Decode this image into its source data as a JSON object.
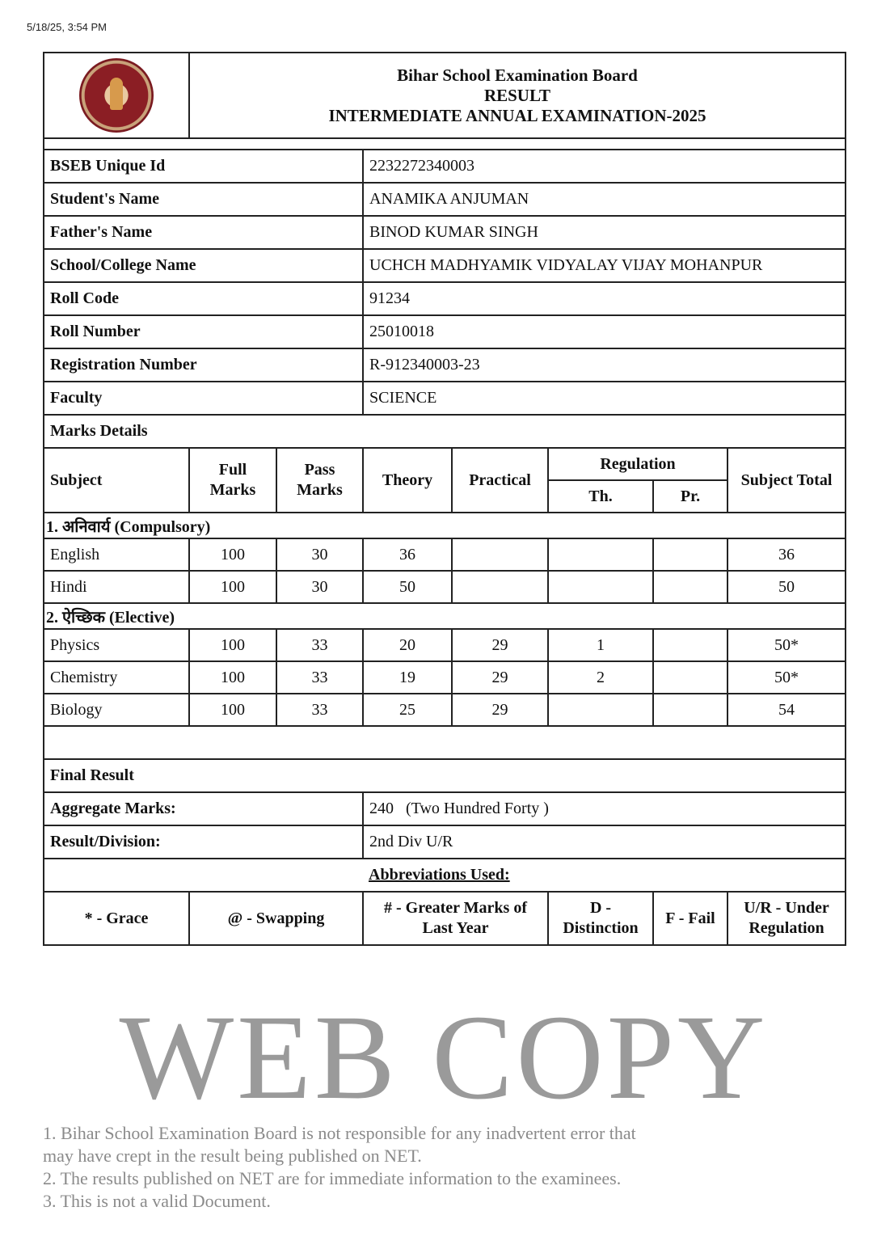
{
  "timestamp": "5/18/25, 3:54 PM",
  "header": {
    "board": "Bihar School Examination Board",
    "result": "RESULT",
    "exam": "INTERMEDIATE ANNUAL EXAMINATION-2025",
    "logo": "bseb-seal-icon"
  },
  "info": [
    {
      "label": "BSEB Unique Id",
      "value": "2232272340003"
    },
    {
      "label": "Student's Name",
      "value": "ANAMIKA ANJUMAN"
    },
    {
      "label": "Father's Name",
      "value": "BINOD KUMAR SINGH"
    },
    {
      "label": "School/College Name",
      "value": "UCHCH MADHYAMIK VIDYALAY VIJAY MOHANPUR"
    },
    {
      "label": "Roll Code",
      "value": "91234"
    },
    {
      "label": "Roll Number",
      "value": "25010018"
    },
    {
      "label": "Registration Number",
      "value": "R-912340003-23"
    },
    {
      "label": "Faculty",
      "value": "SCIENCE"
    }
  ],
  "marks_title": "Marks Details",
  "cols": {
    "subject": "Subject",
    "full": "Full Marks",
    "pass": "Pass Marks",
    "theory": "Theory",
    "practical": "Practical",
    "regulation": "Regulation",
    "th": "Th.",
    "pr": "Pr.",
    "total": "Subject Total"
  },
  "sections": [
    {
      "title": "1. अनिवार्य (Compulsory)",
      "rows": [
        {
          "subject": "English",
          "full": "100",
          "pass": "30",
          "theory": "36",
          "practical": "",
          "th": "",
          "pr": "",
          "total": "36"
        },
        {
          "subject": "Hindi",
          "full": "100",
          "pass": "30",
          "theory": "50",
          "practical": "",
          "th": "",
          "pr": "",
          "total": "50"
        }
      ]
    },
    {
      "title": "2. ऐच्छिक (Elective)",
      "rows": [
        {
          "subject": "Physics",
          "full": "100",
          "pass": "33",
          "theory": "20",
          "practical": "29",
          "th": "1",
          "pr": "",
          "total": "50*"
        },
        {
          "subject": "Chemistry",
          "full": "100",
          "pass": "33",
          "theory": "19",
          "practical": "29",
          "th": "2",
          "pr": "",
          "total": "50*"
        },
        {
          "subject": "Biology",
          "full": "100",
          "pass": "33",
          "theory": "25",
          "practical": "29",
          "th": "",
          "pr": "",
          "total": "54"
        }
      ]
    }
  ],
  "final": {
    "title": "Final Result",
    "aggregate_label": "Aggregate Marks:",
    "aggregate_value": "240",
    "aggregate_words": "(Two Hundred Forty )",
    "result_label": "Result/Division:",
    "result_value": "2nd Div U/R"
  },
  "abbrev": {
    "title": "Abbreviations Used:",
    "items": [
      "* - Grace",
      "@ - Swapping",
      "# - Greater Marks of Last Year",
      "D - Distinction",
      "F - Fail",
      "U/R - Under Regulation"
    ]
  },
  "watermark": {
    "main": "WEB COPY",
    "lines": [
      "1. Bihar School Examination Board is not responsible for any inadvertent error that",
      "may have crept in the result being published on NET.",
      "2. The results published on NET are for immediate information to the examinees.",
      "3. This is not a valid Document."
    ]
  }
}
